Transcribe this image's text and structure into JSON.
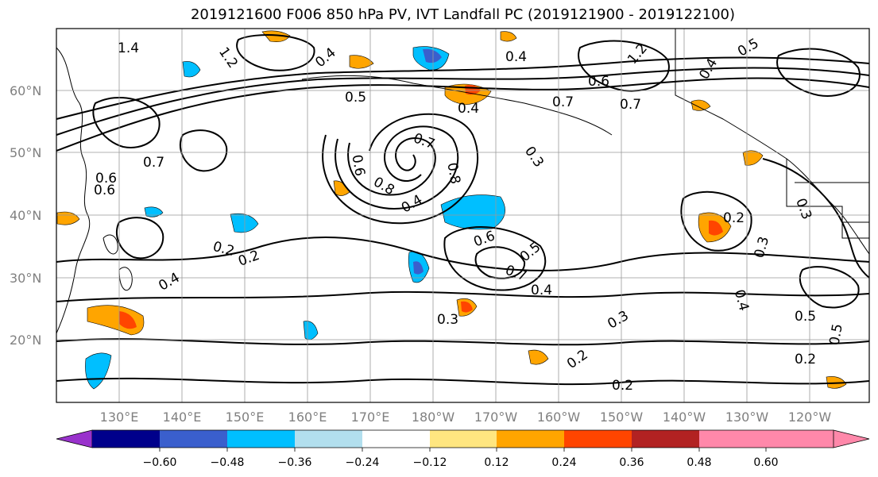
{
  "title": "2019121600 F006 850 hPa PV, IVT Landfall PC (2019121900 - 2019122100)",
  "lat_labels": [
    "60°N",
    "50°N",
    "40°N",
    "30°N",
    "20°N"
  ],
  "lon_labels": [
    "130°E",
    "140°E",
    "150°E",
    "160°E",
    "170°E",
    "180°W",
    "170°W",
    "160°W",
    "150°W",
    "140°W",
    "130°W",
    "120°W"
  ],
  "colorbar": {
    "colors": [
      "#9932cc",
      "#00008b",
      "#3a5fcd",
      "#00bfff",
      "#b2dfee",
      "#ffffff",
      "#ffe680",
      "#ffa500",
      "#ff4500",
      "#b22222",
      "#ff88aa"
    ],
    "tick_labels": [
      "−0.60",
      "−0.48",
      "−0.36",
      "−0.24",
      "−0.12",
      "0.12",
      "0.24",
      "0.36",
      "0.48",
      "0.60"
    ]
  },
  "contour_labels": [
    "1.4",
    "1.2",
    "0.4",
    "0.4",
    "0.5",
    "1.2",
    "0.6",
    "0.7",
    "0.7",
    "0.3",
    "0.4",
    "0.5",
    "0.6",
    "0.7",
    "0.8",
    "0.6",
    "0.4",
    "0.6",
    "0.5",
    "0.7",
    "0.4",
    "0.3",
    "0.2",
    "0.2",
    "0.3",
    "0.2",
    "0.3",
    "0.4",
    "0.5",
    "0.5",
    "0.2",
    "0.2",
    "0.2",
    "0.3",
    "0.4",
    "0.7",
    "0.6",
    "0.8",
    "0.4"
  ]
}
